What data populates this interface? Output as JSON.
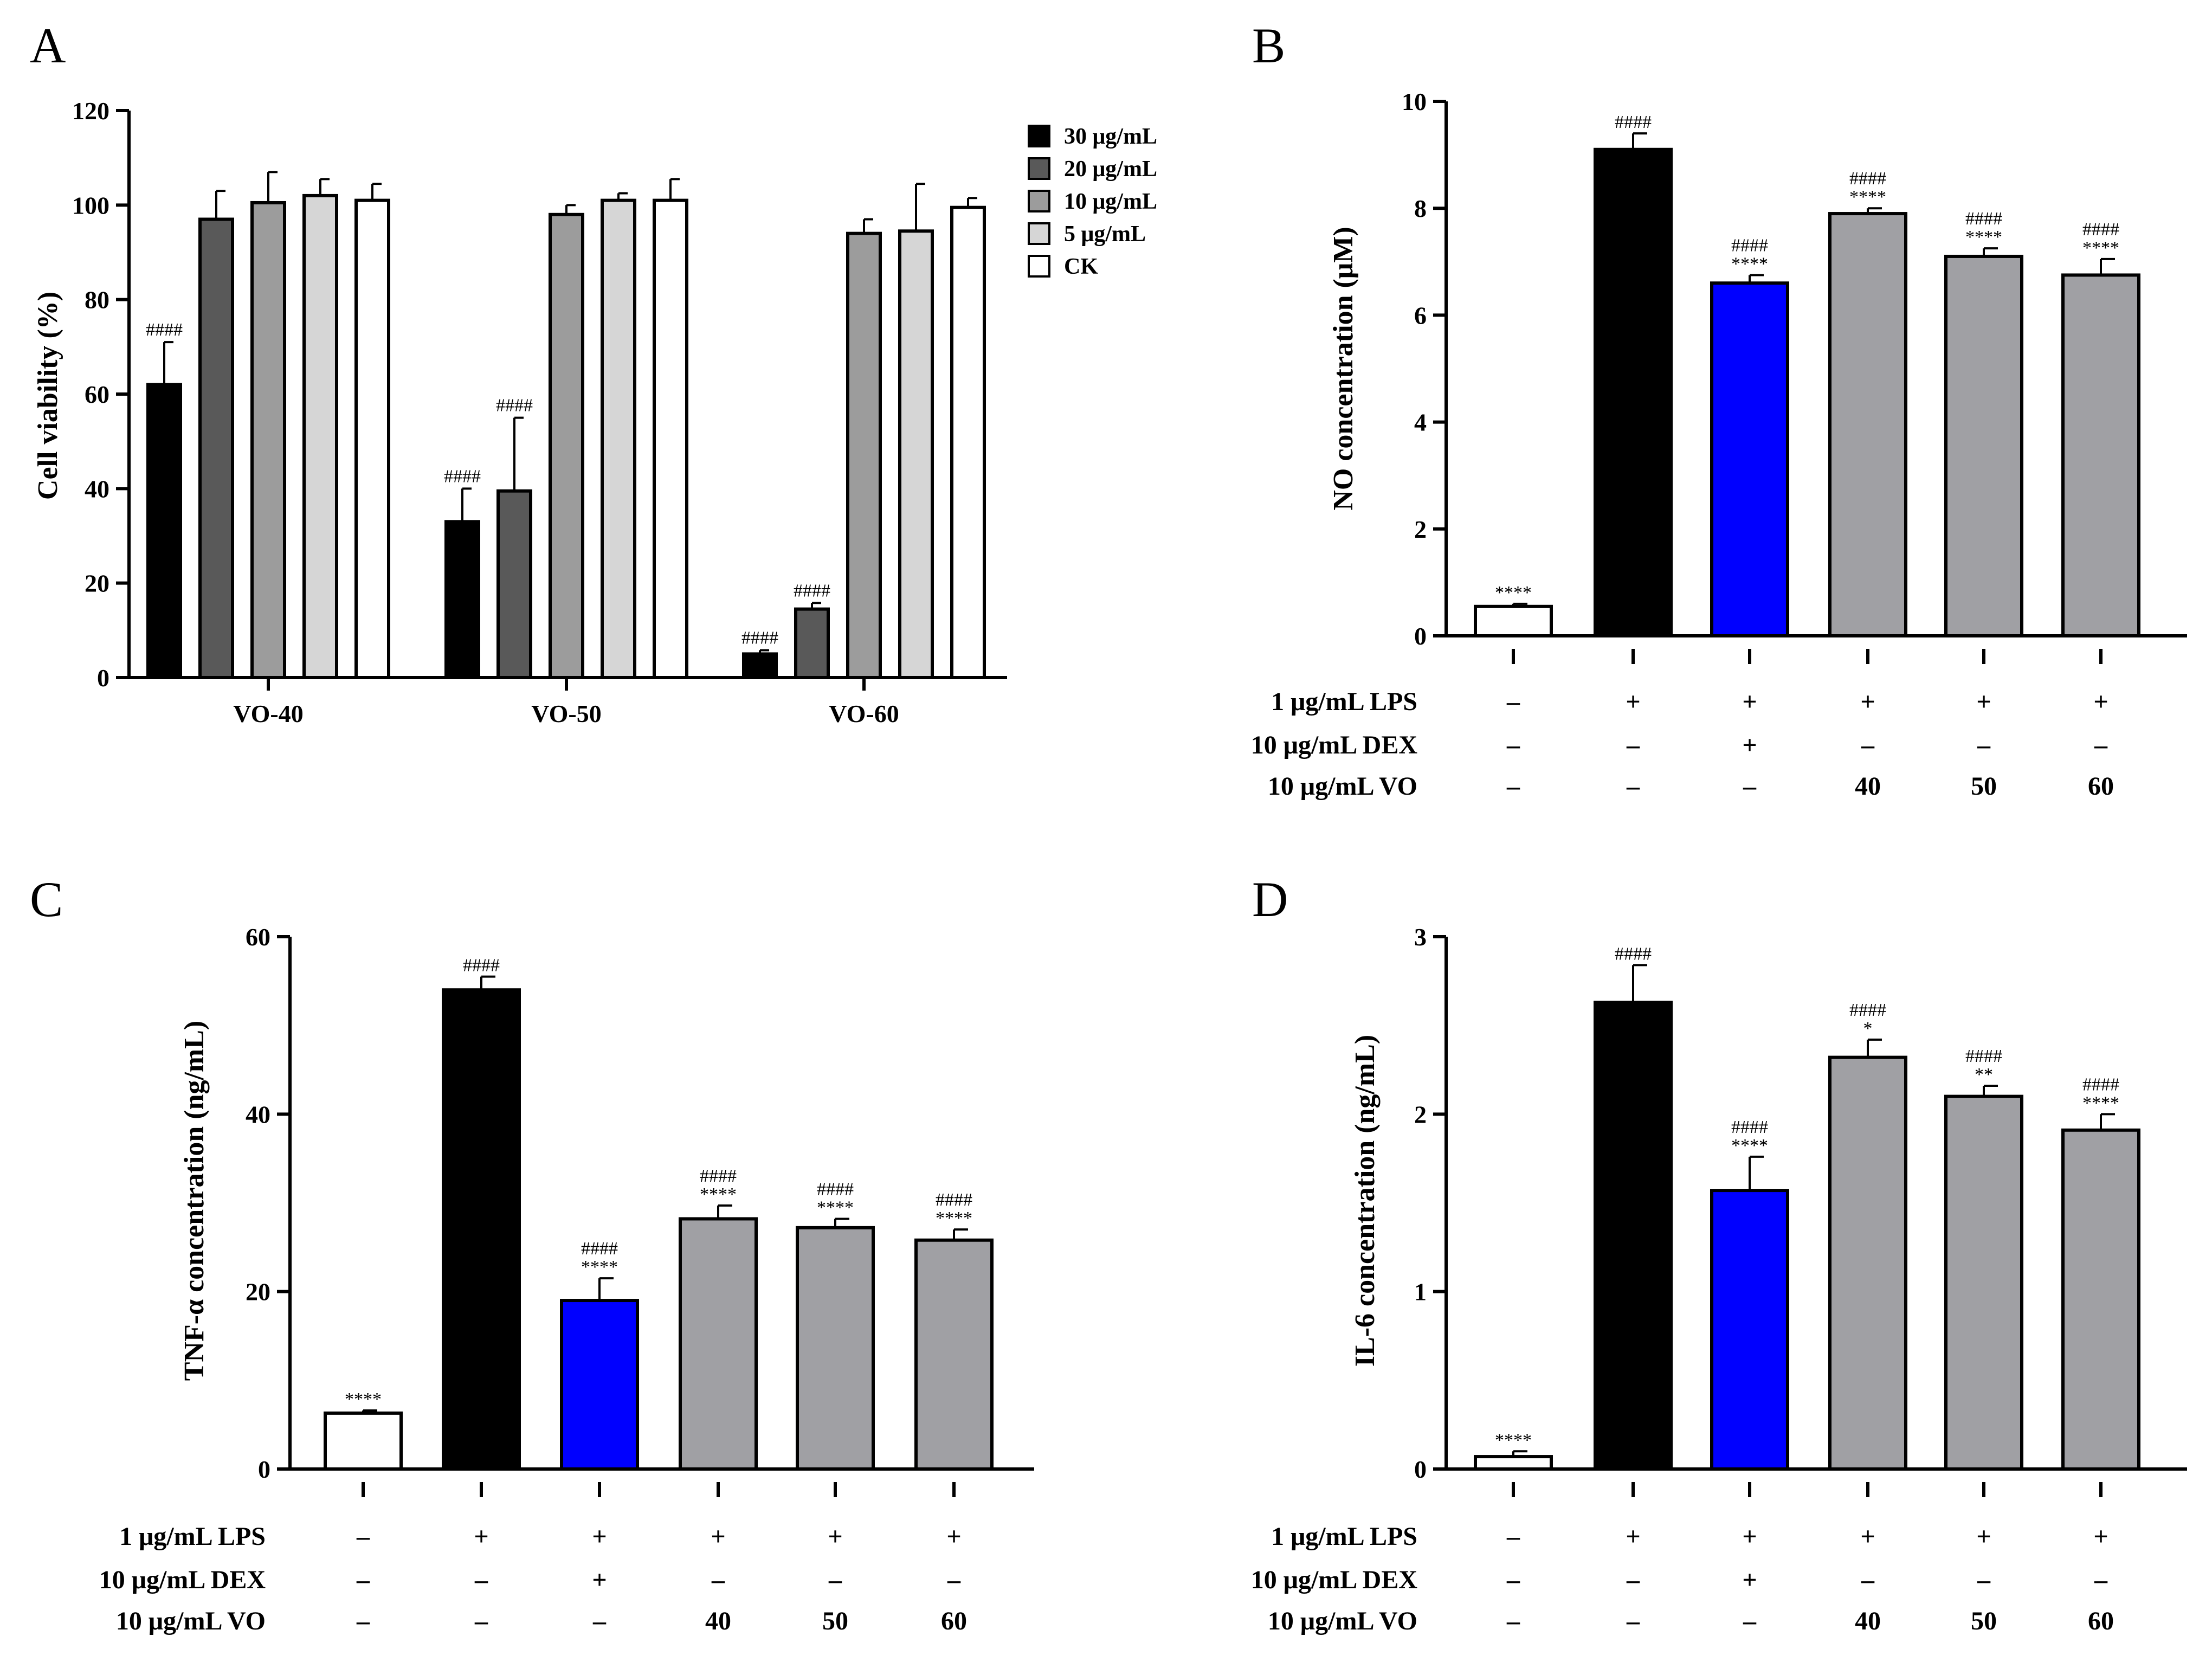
{
  "colors": {
    "c30": "#000000",
    "c20": "#595959",
    "c10": "#9c9c9c",
    "c5": "#d6d6d6",
    "ck": "#ffffff",
    "dex": "#0000ff",
    "lps": "#000000",
    "vo": "#a0a0a4",
    "control": "#ffffff"
  },
  "chart_data": [
    {
      "panel": "A",
      "type": "bar",
      "ylabel": "Cell viability (%)",
      "xlabel": "",
      "ylim": [
        0,
        120
      ],
      "yticks": [
        0,
        20,
        40,
        60,
        80,
        100,
        120
      ],
      "categories": [
        "VO-40",
        "VO-50",
        "VO-60"
      ],
      "legend_position": "top-right",
      "series": [
        {
          "name": "30 μg/mL",
          "color_key": "c30",
          "values": [
            62,
            33,
            5
          ],
          "errors": [
            9,
            7,
            0.8
          ],
          "sig": [
            "####",
            "####",
            "####"
          ]
        },
        {
          "name": "20 μg/mL",
          "color_key": "c20",
          "values": [
            97,
            39.5,
            14.5
          ],
          "errors": [
            6,
            15.5,
            1.3
          ],
          "sig": [
            "",
            "####",
            "####"
          ]
        },
        {
          "name": "10 μg/mL",
          "color_key": "c10",
          "values": [
            100.5,
            98,
            94
          ],
          "errors": [
            6.5,
            2,
            3
          ],
          "sig": [
            "",
            "",
            ""
          ]
        },
        {
          "name": "5 μg/mL",
          "color_key": "c5",
          "values": [
            102,
            101,
            94.5
          ],
          "errors": [
            3.5,
            1.5,
            10
          ],
          "sig": [
            "",
            "",
            ""
          ]
        },
        {
          "name": "CK",
          "color_key": "ck",
          "values": [
            101,
            101,
            99.5
          ],
          "errors": [
            3.5,
            4.5,
            2
          ],
          "sig": [
            "",
            "",
            ""
          ]
        }
      ]
    },
    {
      "panel": "B",
      "type": "bar",
      "ylabel": "NO concentration (μM)",
      "xlabel": "",
      "ylim": [
        0,
        10
      ],
      "yticks": [
        0,
        2,
        4,
        6,
        8,
        10
      ],
      "values": [
        0.55,
        9.1,
        6.6,
        7.9,
        7.1,
        6.75
      ],
      "errors": [
        0.05,
        0.3,
        0.15,
        0.1,
        0.15,
        0.3
      ],
      "sig_top": [
        "",
        "",
        "####",
        "####",
        "####",
        "####"
      ],
      "sig_bottom": [
        "****",
        "####",
        "****",
        "****",
        "****",
        "****"
      ],
      "bar_colors": [
        "control",
        "lps",
        "dex",
        "vo",
        "vo",
        "vo"
      ]
    },
    {
      "panel": "C",
      "type": "bar",
      "ylabel": "TNF-α concentration (ng/mL)",
      "xlabel": "",
      "ylim": [
        0,
        60
      ],
      "yticks": [
        0,
        20,
        40,
        60
      ],
      "values": [
        6.3,
        54,
        19,
        28.2,
        27.2,
        25.8
      ],
      "errors": [
        0.3,
        1.5,
        2.5,
        1.5,
        1.0,
        1.2
      ],
      "sig_top": [
        "",
        "",
        "####",
        "####",
        "####",
        "####"
      ],
      "sig_bottom": [
        "****",
        "####",
        "****",
        "****",
        "****",
        "****"
      ],
      "bar_colors": [
        "control",
        "lps",
        "dex",
        "vo",
        "vo",
        "vo"
      ]
    },
    {
      "panel": "D",
      "type": "bar",
      "ylabel": "IL-6 concentration (ng/mL)",
      "xlabel": "",
      "ylim": [
        0,
        3
      ],
      "yticks": [
        0,
        1,
        2,
        3
      ],
      "values": [
        0.07,
        2.63,
        1.57,
        2.32,
        2.1,
        1.91
      ],
      "errors": [
        0.03,
        0.21,
        0.19,
        0.1,
        0.06,
        0.09
      ],
      "sig_top": [
        "",
        "",
        "####",
        "####",
        "####",
        "####"
      ],
      "sig_bottom": [
        "****",
        "####",
        "****",
        "*",
        "**",
        "****"
      ],
      "bar_colors": [
        "control",
        "lps",
        "dex",
        "vo",
        "vo",
        "vo"
      ]
    }
  ],
  "treatment_table": {
    "rows": [
      {
        "label": "1 μg/mL LPS",
        "values": [
          "–",
          "+",
          "+",
          "+",
          "+",
          "+"
        ]
      },
      {
        "label": "10 μg/mL DEX",
        "values": [
          "–",
          "–",
          "+",
          "–",
          "–",
          "–"
        ]
      },
      {
        "label": "10 μg/mL VO",
        "values": [
          "–",
          "–",
          "–",
          "40",
          "50",
          "60"
        ]
      }
    ]
  },
  "panels": {
    "a": {
      "letter": "A"
    },
    "b": {
      "letter": "B"
    },
    "c": {
      "letter": "C"
    },
    "d": {
      "letter": "D"
    }
  }
}
